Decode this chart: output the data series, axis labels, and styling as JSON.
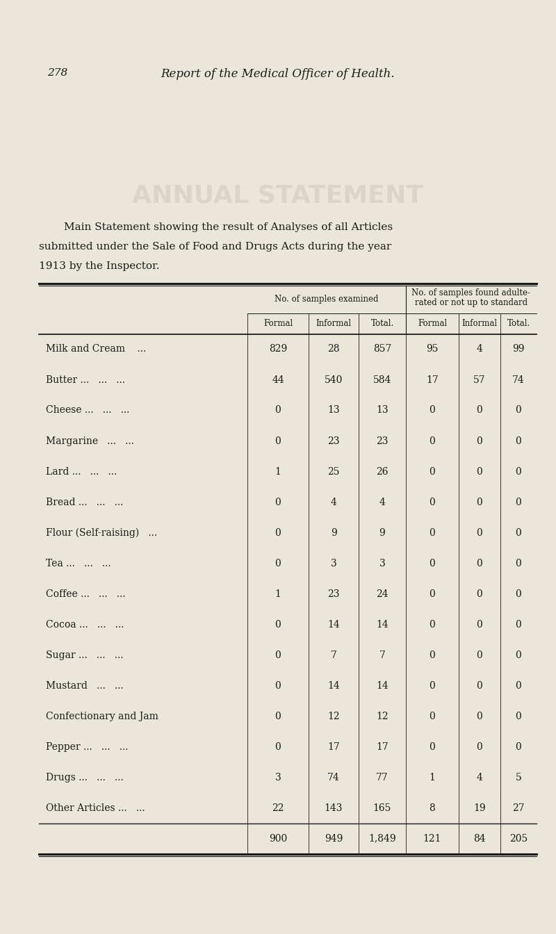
{
  "page_number": "278",
  "page_header": "Report of the Medical Officer of Health.",
  "intro_line1": "Main Statement showing the result of Analyses of all Articles",
  "intro_line2": "submitted under the Sale of Food and Drugs Acts during the year",
  "intro_line3": "1913 by the Inspector.",
  "col_group1_header": "No. of samples examined",
  "col_group2_header": "No. of samples found adulte-\nrated or not up to standard",
  "col_sub_headers": [
    "Formal",
    "Informal",
    "Total."
  ],
  "rows": [
    [
      "Milk and Cream",
      "...",
      "829",
      "28",
      "857",
      "95",
      "4",
      "99"
    ],
    [
      "Butter ...",
      "...",
      "44",
      "540",
      "584",
      "17",
      "57",
      "74"
    ],
    [
      "Cheese ...",
      "...",
      "0",
      "13",
      "13",
      "0",
      "0",
      "0"
    ],
    [
      "Margarine",
      "...",
      "0",
      "23",
      "23",
      "0",
      "0",
      "0"
    ],
    [
      "Lard ...",
      "...",
      "1",
      "25",
      "26",
      "0",
      "0",
      "0"
    ],
    [
      "Bread ...",
      "...",
      "0",
      "4",
      "4",
      "0",
      "0",
      "0"
    ],
    [
      "Flour (Self-raising)",
      "...",
      "0",
      "9",
      "9",
      "0",
      "0",
      "0"
    ],
    [
      "Tea ...",
      "...",
      "0",
      "3",
      "3",
      "0",
      "0",
      "0"
    ],
    [
      "Coffee ...",
      "...",
      "1",
      "23",
      "24",
      "0",
      "0",
      "0"
    ],
    [
      "Cocoa ...",
      "...",
      "0",
      "14",
      "14",
      "0",
      "0",
      "0"
    ],
    [
      "Sugar ...",
      "...",
      "0",
      "7",
      "7",
      "0",
      "0",
      "0"
    ],
    [
      "Mustard",
      "...",
      "0",
      "14",
      "14",
      "0",
      "0",
      "0"
    ],
    [
      "Confectionary and Jam",
      "",
      "0",
      "12",
      "12",
      "0",
      "0",
      "0"
    ],
    [
      "Pepper ...",
      "...",
      "0",
      "17",
      "17",
      "0",
      "0",
      "0"
    ],
    [
      "Drugs ...",
      "...",
      "3",
      "74",
      "77",
      "1",
      "4",
      "5"
    ],
    [
      "Other Articles ...",
      "...",
      "22",
      "143",
      "165",
      "8",
      "19",
      "27"
    ]
  ],
  "row_labels_display": [
    "Milk and Cream    ...",
    "Butter ...   ...   ...",
    "Cheese ...   ...   ...",
    "Margarine   ...   ...",
    "Lard ...   ...   ...",
    "Bread ...   ...   ...",
    "Flour (Self-raising)   ...",
    "Tea ...   ...   ...",
    "Coffee ...   ...   ...",
    "Cocoa ...   ...   ...",
    "Sugar ...   ...   ...",
    "Mustard   ...   ...",
    "Confectionary and Jam",
    "Pepper ...   ...   ...",
    "Drugs ...   ...   ...",
    "Other Articles ...   ..."
  ],
  "totals": [
    "900",
    "949",
    "1,849",
    "121",
    "84",
    "205"
  ],
  "bg_color": "#eae6d9",
  "text_color": "#1a1a1a",
  "line_color": "#1a1a1a",
  "watermark_color": "#c8c2b0"
}
